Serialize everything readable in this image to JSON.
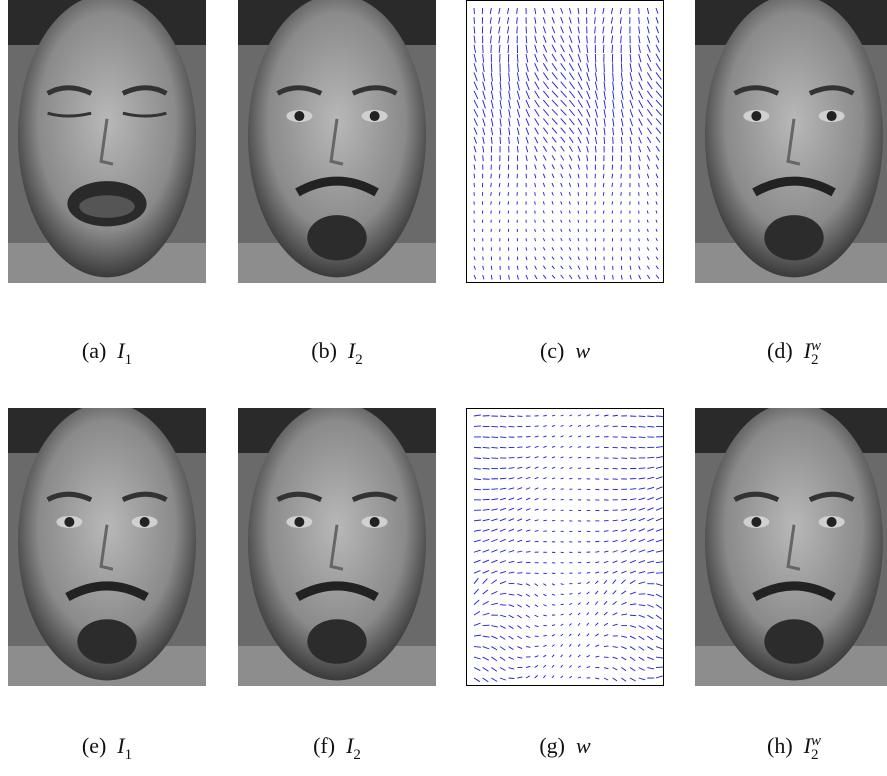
{
  "panels": [
    {
      "label": "(a)",
      "symbol": "I",
      "sub": "1"
    },
    {
      "label": "(b)",
      "symbol": "I",
      "sub": "2"
    },
    {
      "label": "(c)",
      "symbol": "w"
    },
    {
      "label": "(d)",
      "symbol": "I",
      "sub": "2",
      "sup": "w"
    },
    {
      "label": "(e)",
      "symbol": "I",
      "sub": "1"
    },
    {
      "label": "(f)",
      "symbol": "I",
      "sub": "2"
    },
    {
      "label": "(g)",
      "symbol": "w"
    },
    {
      "label": "(h)",
      "symbol": "I",
      "sub": "2",
      "sup": "w"
    }
  ]
}
